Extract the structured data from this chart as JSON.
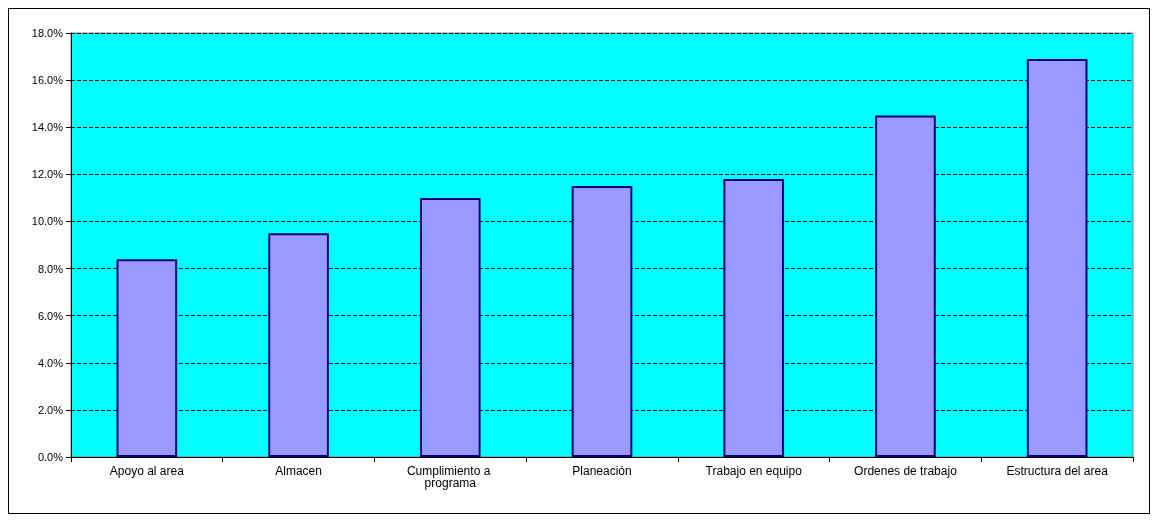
{
  "chart_data": {
    "type": "bar",
    "categories": [
      "Apoyo al area",
      "Almacen",
      "Cumplimiento a programa",
      "Planeación",
      "Trabajo en equipo",
      "Ordenes de trabajo",
      "Estructura del area"
    ],
    "values": [
      8.4,
      9.5,
      11.0,
      11.5,
      11.8,
      14.5,
      16.9
    ],
    "color": "#9999ff",
    "ylim": [
      0,
      18
    ],
    "yticks": [
      {
        "value": 0,
        "label": "0.0%"
      },
      {
        "value": 2,
        "label": "2.0%"
      },
      {
        "value": 4,
        "label": "4.0%"
      },
      {
        "value": 6,
        "label": "6.0%"
      },
      {
        "value": 8,
        "label": "8.0%"
      },
      {
        "value": 10,
        "label": "10.0%"
      },
      {
        "value": 12,
        "label": "12.0%"
      },
      {
        "value": 14,
        "label": "14.0%"
      },
      {
        "value": 16,
        "label": "16.0%"
      },
      {
        "value": 18,
        "label": "18.0%"
      }
    ],
    "grid": "y"
  }
}
